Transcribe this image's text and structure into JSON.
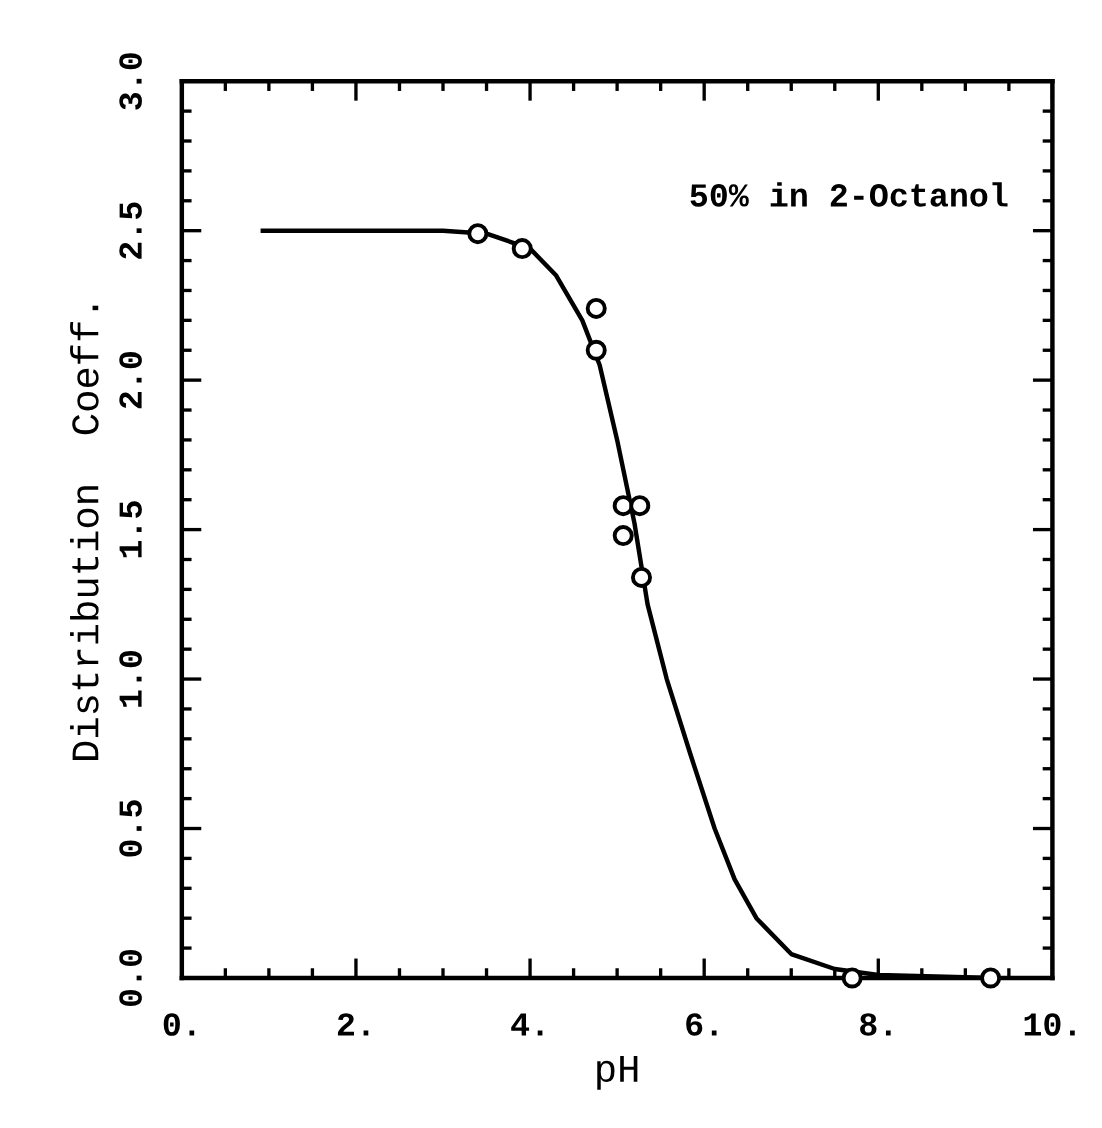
{
  "chart_data": {
    "type": "scatter",
    "xlabel": "pH",
    "ylabel": "Distribution  Coeff.",
    "annotations": [
      "50% in 2-Octanol"
    ],
    "series": [
      {
        "color": "#000000",
        "marker": "circle",
        "x": [
          3.4,
          3.91,
          4.76,
          4.76,
          5.07,
          5.26,
          5.07,
          5.28,
          7.7,
          9.29
        ],
        "values": [
          2.49,
          2.44,
          2.24,
          2.1,
          1.58,
          1.58,
          1.48,
          1.34,
          0.0,
          0.0
        ]
      },
      {
        "type": "line",
        "color": "#000000",
        "line_style": "solid",
        "x": [
          0.93,
          3.0,
          3.5,
          4.0,
          4.3,
          4.6,
          4.8,
          5.0,
          5.2,
          5.35,
          5.57,
          5.84,
          6.12,
          6.35,
          6.6,
          7.0,
          7.5,
          8.0,
          9.3
        ],
        "values": [
          2.5,
          2.5,
          2.49,
          2.44,
          2.35,
          2.2,
          2.05,
          1.8,
          1.52,
          1.25,
          1.0,
          0.75,
          0.5,
          0.33,
          0.2,
          0.08,
          0.03,
          0.01,
          0.0
        ]
      }
    ],
    "xlim": [
      0,
      10
    ],
    "ylim": [
      0,
      3
    ],
    "xticks": [
      {
        "value": 0,
        "label": "0."
      },
      {
        "value": 2,
        "label": "2."
      },
      {
        "value": 4,
        "label": "4."
      },
      {
        "value": 6,
        "label": "6."
      },
      {
        "value": 8,
        "label": "8."
      },
      {
        "value": 10,
        "label": "10."
      }
    ],
    "yticks": [
      {
        "value": 0,
        "label": "0.0"
      },
      {
        "value": 0.5,
        "label": "0.5"
      },
      {
        "value": 1,
        "label": "1.0"
      },
      {
        "value": 1.5,
        "label": "1.5"
      },
      {
        "value": 2,
        "label": "2.0"
      },
      {
        "value": 2.5,
        "label": "2.5"
      },
      {
        "value": 3,
        "label": "3.0"
      }
    ],
    "grid": false,
    "legend": false
  }
}
